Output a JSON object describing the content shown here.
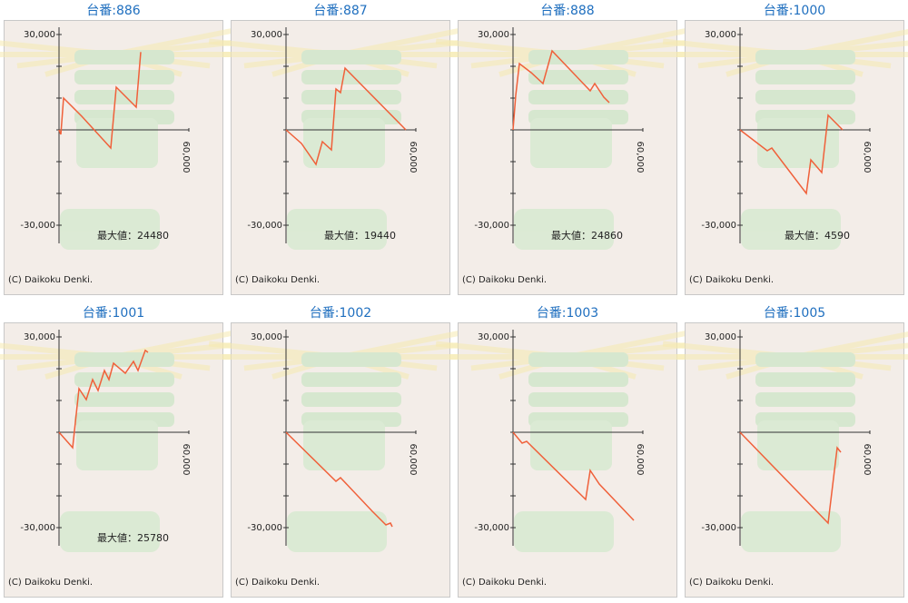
{
  "chart_data": [
    {
      "type": "line",
      "title": "台番:886",
      "x": [
        0,
        839,
        2098,
        4196,
        10490,
        23916,
        26434,
        35664,
        37762
      ],
      "values": [
        0,
        -1429,
        10000,
        8571,
        4286,
        -5714,
        13429,
        7143,
        24480
      ],
      "color": "#f0603a",
      "xlim": [
        0,
        60000
      ],
      "xticks": [
        {
          "value": 60000,
          "label": "60,000"
        }
      ],
      "ylim": [
        -30000,
        30000
      ],
      "yticks": [
        {
          "value": -30000,
          "label": "-30,000"
        },
        {
          "value": 30000,
          "label": "30,000"
        }
      ],
      "yminorticks": [
        -20000,
        -10000,
        0,
        10000,
        20000
      ],
      "annotation": "最大値：24480",
      "copyright": "(C) Daikoku Denki."
    },
    {
      "type": "line",
      "title": "台番:887",
      "x": [
        0,
        7133,
        13846,
        16783,
        20979,
        23077,
        25175,
        27273,
        55385
      ],
      "values": [
        0,
        -4286,
        -10857,
        -3714,
        -6286,
        12857,
        11714,
        19440,
        0
      ],
      "color": "#f0603a",
      "xlim": [
        0,
        60000
      ],
      "xticks": [
        {
          "value": 60000,
          "label": "60,000"
        }
      ],
      "ylim": [
        -30000,
        30000
      ],
      "yticks": [
        {
          "value": -30000,
          "label": "-30,000"
        },
        {
          "value": 30000,
          "label": "30,000"
        }
      ],
      "yminorticks": [
        -20000,
        -10000,
        0,
        10000,
        20000
      ],
      "annotation": "最大値：19440",
      "copyright": "(C) Daikoku Denki."
    },
    {
      "type": "line",
      "title": "台番:888",
      "x": [
        0,
        1259,
        2937,
        8392,
        13846,
        18042,
        35664,
        37762,
        41958,
        44476
      ],
      "values": [
        0,
        10857,
        20857,
        18000,
        14571,
        24860,
        12286,
        14571,
        10286,
        8571
      ],
      "color": "#f0603a",
      "xlim": [
        0,
        60000
      ],
      "xticks": [
        {
          "value": 60000,
          "label": "60,000"
        }
      ],
      "ylim": [
        -30000,
        30000
      ],
      "yticks": [
        {
          "value": -30000,
          "label": "-30,000"
        },
        {
          "value": 30000,
          "label": "30,000"
        }
      ],
      "yminorticks": [
        -20000,
        -10000,
        0,
        10000,
        20000
      ],
      "annotation": "最大値：24860",
      "copyright": "(C) Daikoku Denki."
    },
    {
      "type": "line",
      "title": "台番:1000",
      "x": [
        0,
        12587,
        14685,
        30629,
        32727,
        37762,
        40699,
        47413
      ],
      "values": [
        0,
        -6571,
        -5714,
        -20000,
        -9429,
        -13429,
        4590,
        0
      ],
      "color": "#f0603a",
      "xlim": [
        0,
        60000
      ],
      "xticks": [
        {
          "value": 60000,
          "label": "60,000"
        }
      ],
      "ylim": [
        -30000,
        30000
      ],
      "yticks": [
        {
          "value": -30000,
          "label": "-30,000"
        },
        {
          "value": 30000,
          "label": "30,000"
        }
      ],
      "yminorticks": [
        -20000,
        -10000,
        0,
        10000,
        20000
      ],
      "annotation": "最大値：4590",
      "copyright": "(C) Daikoku Denki."
    },
    {
      "type": "line",
      "title": "台番:1001",
      "x": [
        0,
        6294,
        9231,
        12587,
        15524,
        18042,
        20979,
        23077,
        25175,
        30629,
        34406,
        36503,
        39860,
        41119
      ],
      "values": [
        0,
        -4857,
        13714,
        10286,
        16571,
        13143,
        19429,
        16571,
        21714,
        18571,
        22286,
        19429,
        25780,
        25143
      ],
      "color": "#f0603a",
      "xlim": [
        0,
        60000
      ],
      "xticks": [
        {
          "value": 60000,
          "label": "60,000"
        }
      ],
      "ylim": [
        -30000,
        30000
      ],
      "yticks": [
        {
          "value": -30000,
          "label": "-30,000"
        },
        {
          "value": 30000,
          "label": "30,000"
        }
      ],
      "yminorticks": [
        -20000,
        -10000,
        0,
        10000,
        20000
      ],
      "annotation": "最大値：25780",
      "copyright": "(C) Daikoku Denki."
    },
    {
      "type": "line",
      "title": "台番:1002",
      "x": [
        0,
        23077,
        25175,
        39860,
        46154,
        48252,
        49091
      ],
      "values": [
        0,
        -15429,
        -14286,
        -24857,
        -29143,
        -28571,
        -29714
      ],
      "color": "#f0603a",
      "xlim": [
        0,
        60000
      ],
      "xticks": [
        {
          "value": 60000,
          "label": "60,000"
        }
      ],
      "ylim": [
        -30000,
        30000
      ],
      "yticks": [
        {
          "value": -30000,
          "label": "-30,000"
        },
        {
          "value": 30000,
          "label": "30,000"
        }
      ],
      "yminorticks": [
        -20000,
        -10000,
        0,
        10000,
        20000
      ],
      "copyright": "(C) Daikoku Denki."
    },
    {
      "type": "line",
      "title": "台番:1003",
      "x": [
        0,
        4196,
        6294,
        33566,
        35664,
        39860,
        55804
      ],
      "values": [
        0,
        -3429,
        -2857,
        -21143,
        -12000,
        -16286,
        -27714
      ],
      "color": "#f0603a",
      "xlim": [
        0,
        60000
      ],
      "xticks": [
        {
          "value": 60000,
          "label": "60,000"
        }
      ],
      "ylim": [
        -30000,
        30000
      ],
      "yticks": [
        {
          "value": -30000,
          "label": "-30,000"
        },
        {
          "value": 30000,
          "label": "30,000"
        }
      ],
      "yminorticks": [
        -20000,
        -10000,
        0,
        10000,
        20000
      ],
      "copyright": "(C) Daikoku Denki."
    },
    {
      "type": "line",
      "title": "台番:1005",
      "x": [
        0,
        40699,
        44895,
        46573
      ],
      "values": [
        0,
        -28571,
        -4857,
        -6286
      ],
      "color": "#f0603a",
      "xlim": [
        0,
        60000
      ],
      "xticks": [
        {
          "value": 60000,
          "label": "60,000"
        }
      ],
      "ylim": [
        -30000,
        30000
      ],
      "yticks": [
        {
          "value": -30000,
          "label": "-30,000"
        },
        {
          "value": 30000,
          "label": "30,000"
        }
      ],
      "yminorticks": [
        -20000,
        -10000,
        0,
        10000,
        20000
      ],
      "copyright": "(C) Daikoku Denki."
    }
  ]
}
